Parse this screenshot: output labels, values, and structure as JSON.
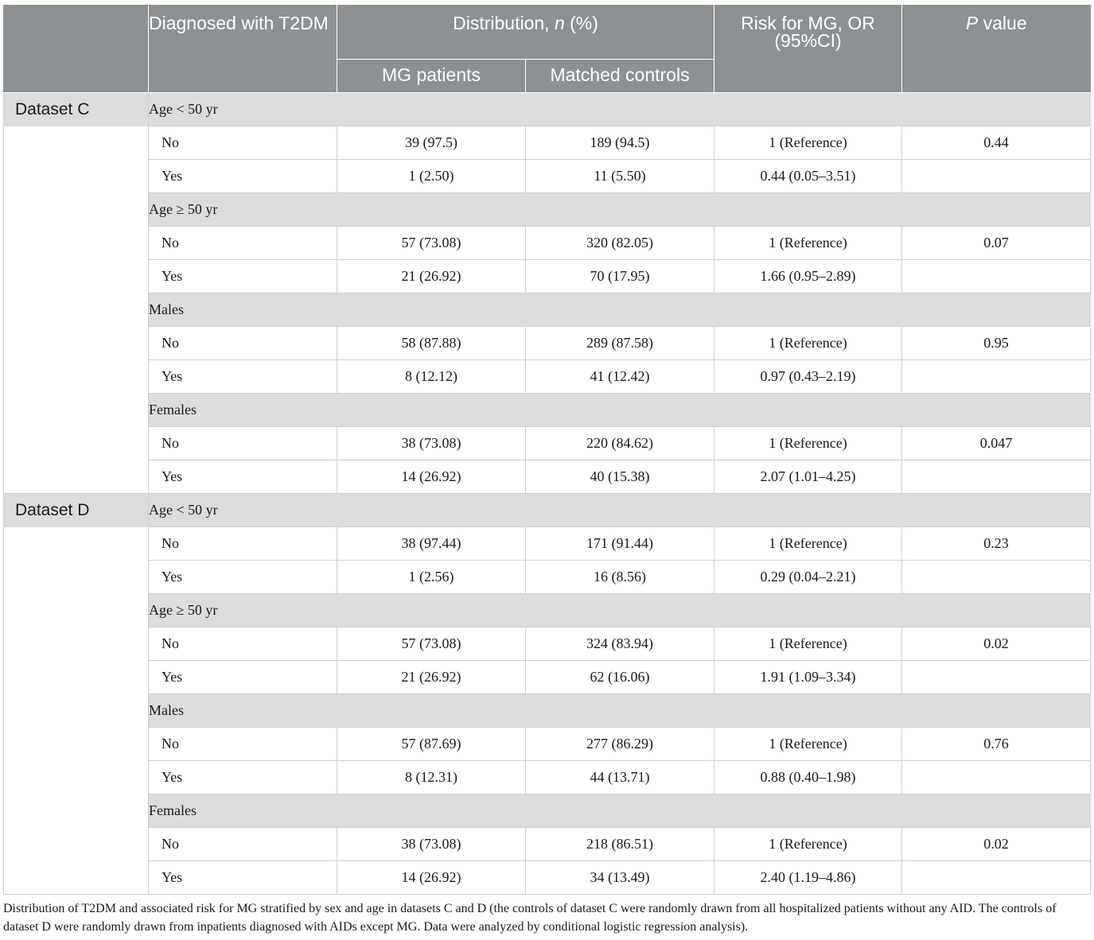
{
  "header": {
    "col_diag": "Diagnosed with T2DM",
    "col_dist_pre": "Distribution, ",
    "col_dist_n": "n",
    "col_dist_post": " (%)",
    "col_or": "Risk for MG, OR (95%CI)",
    "col_p_italic": "P",
    "col_p_rest": " value",
    "sub_mg": "MG patients",
    "sub_ctrl": "Matched controls"
  },
  "datasets": [
    {
      "label": "Dataset C",
      "groups": [
        {
          "label": "Age < 50 yr",
          "rows": [
            {
              "label": "No",
              "mg": "39 (97.5)",
              "ctrl": "189 (94.5)",
              "or": "1 (Reference)",
              "p": "0.44"
            },
            {
              "label": "Yes",
              "mg": "1 (2.50)",
              "ctrl": "11 (5.50)",
              "or": "0.44 (0.05–3.51)",
              "p": ""
            }
          ]
        },
        {
          "label": "Age ≥ 50 yr",
          "rows": [
            {
              "label": "No",
              "mg": "57 (73.08)",
              "ctrl": "320 (82.05)",
              "or": "1 (Reference)",
              "p": "0.07"
            },
            {
              "label": "Yes",
              "mg": "21 (26.92)",
              "ctrl": "70 (17.95)",
              "or": "1.66 (0.95–2.89)",
              "p": ""
            }
          ]
        },
        {
          "label": "Males",
          "rows": [
            {
              "label": "No",
              "mg": "58 (87.88)",
              "ctrl": "289 (87.58)",
              "or": "1 (Reference)",
              "p": "0.95"
            },
            {
              "label": "Yes",
              "mg": "8 (12.12)",
              "ctrl": "41 (12.42)",
              "or": "0.97 (0.43–2.19)",
              "p": ""
            }
          ]
        },
        {
          "label": "Females",
          "rows": [
            {
              "label": "No",
              "mg": "38 (73.08)",
              "ctrl": "220 (84.62)",
              "or": "1 (Reference)",
              "p": "0.047"
            },
            {
              "label": "Yes",
              "mg": "14 (26.92)",
              "ctrl": "40 (15.38)",
              "or": "2.07 (1.01–4.25)",
              "p": ""
            }
          ]
        }
      ]
    },
    {
      "label": "Dataset D",
      "groups": [
        {
          "label": "Age < 50 yr",
          "rows": [
            {
              "label": "No",
              "mg": "38 (97.44)",
              "ctrl": "171 (91.44)",
              "or": "1 (Reference)",
              "p": "0.23"
            },
            {
              "label": "Yes",
              "mg": "1 (2.56)",
              "ctrl": "16 (8.56)",
              "or": "0.29 (0.04–2.21)",
              "p": ""
            }
          ]
        },
        {
          "label": "Age ≥ 50 yr",
          "rows": [
            {
              "label": "No",
              "mg": "57 (73.08)",
              "ctrl": "324 (83.94)",
              "or": "1 (Reference)",
              "p": "0.02"
            },
            {
              "label": "Yes",
              "mg": "21 (26.92)",
              "ctrl": "62 (16.06)",
              "or": "1.91 (1.09–3.34)",
              "p": ""
            }
          ]
        },
        {
          "label": "Males",
          "rows": [
            {
              "label": "No",
              "mg": "57 (87.69)",
              "ctrl": "277 (86.29)",
              "or": "1 (Reference)",
              "p": "0.76"
            },
            {
              "label": "Yes",
              "mg": "8 (12.31)",
              "ctrl": "44 (13.71)",
              "or": "0.88 (0.40–1.98)",
              "p": ""
            }
          ]
        },
        {
          "label": "Females",
          "rows": [
            {
              "label": "No",
              "mg": "38 (73.08)",
              "ctrl": "218 (86.51)",
              "or": "1 (Reference)",
              "p": "0.02"
            },
            {
              "label": "Yes",
              "mg": "14 (26.92)",
              "ctrl": "34 (13.49)",
              "or": "2.40 (1.19–4.86)",
              "p": ""
            }
          ]
        }
      ]
    }
  ],
  "footnote": "Distribution of T2DM and associated risk for MG stratified by sex and age in datasets C and D (the controls of dataset C were randomly drawn from all hospitalized patients without any AID. The controls of dataset D were randomly drawn from inpatients diagnosed with AIDs except MG. Data were analyzed by conditional logistic regression analysis)."
}
